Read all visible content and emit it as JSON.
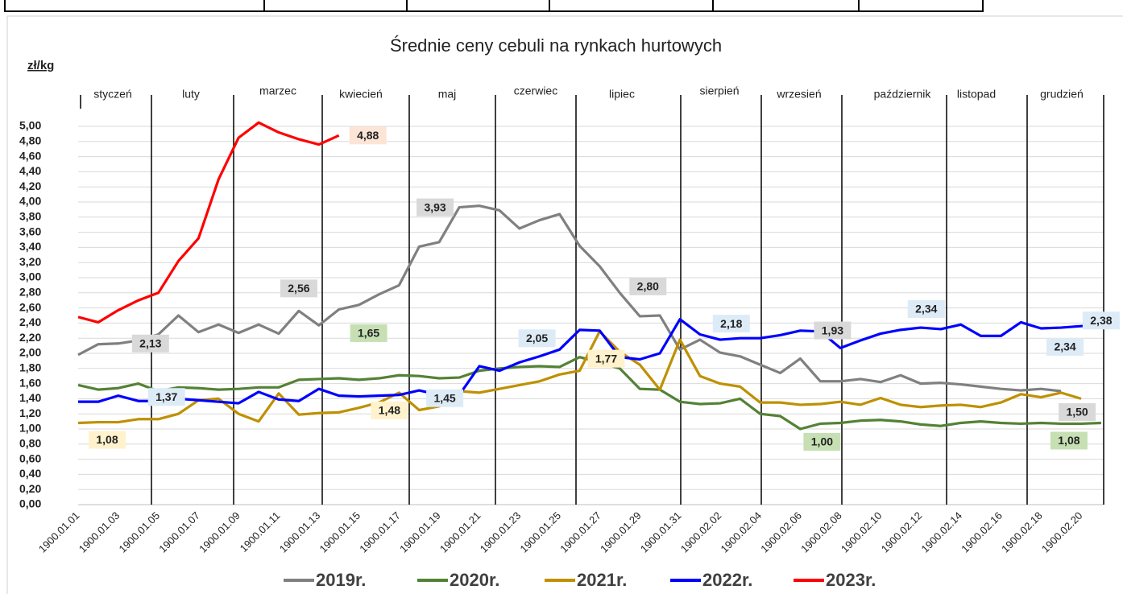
{
  "chart_data": {
    "type": "line",
    "title": "Średnie ceny cebuli na rynkach hurtowych",
    "y_label": "zł/kg",
    "annotations": [
      "styczeń",
      "luty",
      "marzec",
      "kwiecień",
      "maj",
      "czerwiec",
      "lipiec",
      "sierpień",
      "wrzesień",
      "październik",
      "listopad",
      "grudzień"
    ],
    "categories": [
      "1900.01.01",
      null,
      "1900.01.03",
      null,
      "1900.01.05",
      null,
      "1900.01.07",
      null,
      "1900.01.09",
      null,
      "1900.01.11",
      null,
      "1900.01.13",
      null,
      "1900.01.15",
      null,
      "1900.01.17",
      null,
      "1900.01.19",
      null,
      "1900.01.21",
      null,
      "1900.01.23",
      null,
      "1900.01.25",
      null,
      "1900.01.27",
      null,
      "1900.01.29",
      null,
      "1900.01.31",
      null,
      "1900.02.02",
      null,
      "1900.02.04",
      null,
      "1900.02.06",
      null,
      "1900.02.08",
      null,
      "1900.02.10",
      null,
      "1900.02.12",
      null,
      "1900.02.14",
      null,
      "1900.02.16",
      null,
      "1900.02.18",
      null,
      "1900.02.20",
      null
    ],
    "ylim": [
      0,
      5
    ],
    "yticks": [
      {
        "value": 0,
        "label": "0,00"
      },
      {
        "value": 0.2,
        "label": "0,20"
      },
      {
        "value": 0.4,
        "label": "0,40"
      },
      {
        "value": 0.6,
        "label": "0,60"
      },
      {
        "value": 0.8,
        "label": "0,80"
      },
      {
        "value": 1,
        "label": "1,00"
      },
      {
        "value": 1.2,
        "label": "1,20"
      },
      {
        "value": 1.4,
        "label": "1,40"
      },
      {
        "value": 1.6,
        "label": "1,60"
      },
      {
        "value": 1.8,
        "label": "1,80"
      },
      {
        "value": 2,
        "label": "2,00"
      },
      {
        "value": 2.2,
        "label": "2,20"
      },
      {
        "value": 2.4,
        "label": "2,40"
      },
      {
        "value": 2.6,
        "label": "2,60"
      },
      {
        "value": 2.8,
        "label": "2,80"
      },
      {
        "value": 3,
        "label": "3,00"
      },
      {
        "value": 3.2,
        "label": "3,20"
      },
      {
        "value": 3.4,
        "label": "3,40"
      },
      {
        "value": 3.6,
        "label": "3,60"
      },
      {
        "value": 3.8,
        "label": "3,80"
      },
      {
        "value": 4,
        "label": "4,00"
      },
      {
        "value": 4.2,
        "label": "4,20"
      },
      {
        "value": 4.4,
        "label": "4,40"
      },
      {
        "value": 4.6,
        "label": "4,60"
      },
      {
        "value": 4.8,
        "label": "4,80"
      },
      {
        "value": 5,
        "label": "5,00"
      }
    ],
    "grid": true,
    "legend": "bottom",
    "series": [
      {
        "name": "2019r.",
        "color": "#808080",
        "values": [
          1.98,
          2.12,
          2.13,
          2.17,
          2.25,
          2.5,
          2.28,
          2.38,
          2.27,
          2.38,
          2.26,
          2.56,
          2.37,
          2.58,
          2.64,
          2.78,
          2.9,
          3.41,
          3.47,
          3.93,
          3.95,
          3.89,
          3.65,
          3.76,
          3.84,
          3.42,
          3.15,
          2.8,
          2.49,
          2.5,
          2.05,
          2.18,
          2.01,
          1.96,
          1.85,
          1.74,
          1.93,
          1.63,
          1.63,
          1.66,
          1.62,
          1.71,
          1.6,
          1.61,
          1.59,
          1.56,
          1.53,
          1.51,
          1.53,
          1.5,
          null,
          null
        ],
        "value_labels": [
          null,
          null,
          "2,13",
          null,
          null,
          null,
          null,
          null,
          null,
          null,
          null,
          "2,56",
          null,
          null,
          null,
          null,
          null,
          null,
          null,
          "3,93",
          null,
          null,
          null,
          null,
          null,
          null,
          null,
          "2,80",
          null,
          null,
          null,
          null,
          null,
          null,
          null,
          null,
          "1,93",
          null,
          null,
          null,
          null,
          null,
          null,
          null,
          null,
          null,
          null,
          null,
          null,
          "1,50",
          null,
          null
        ]
      },
      {
        "name": "2020r.",
        "color": "#548235",
        "values": [
          1.58,
          1.52,
          1.54,
          1.6,
          1.5,
          1.55,
          1.54,
          1.52,
          1.53,
          1.55,
          1.55,
          1.65,
          1.66,
          1.67,
          1.65,
          1.67,
          1.71,
          1.7,
          1.67,
          1.68,
          1.77,
          1.8,
          1.82,
          1.83,
          1.82,
          1.95,
          1.88,
          1.8,
          1.53,
          1.52,
          1.36,
          1.33,
          1.34,
          1.4,
          1.2,
          1.17,
          1.0,
          1.07,
          1.08,
          1.11,
          1.12,
          1.1,
          1.06,
          1.04,
          1.08,
          1.1,
          1.08,
          1.07,
          1.08,
          1.07,
          1.07,
          1.08
        ],
        "value_labels": [
          null,
          null,
          null,
          null,
          null,
          null,
          null,
          null,
          null,
          null,
          null,
          null,
          null,
          null,
          "1,65",
          null,
          null,
          null,
          null,
          null,
          null,
          null,
          null,
          null,
          null,
          null,
          null,
          null,
          null,
          null,
          null,
          null,
          null,
          null,
          null,
          null,
          "1,00",
          null,
          null,
          null,
          null,
          null,
          null,
          null,
          null,
          null,
          null,
          null,
          null,
          null,
          null,
          "1,08"
        ]
      },
      {
        "name": "2021r.",
        "color": "#bf9000",
        "values": [
          1.08,
          1.09,
          1.09,
          1.13,
          1.13,
          1.2,
          1.38,
          1.4,
          1.2,
          1.1,
          1.47,
          1.19,
          1.21,
          1.22,
          1.28,
          1.35,
          1.48,
          1.25,
          1.3,
          1.5,
          1.48,
          1.53,
          1.58,
          1.63,
          1.72,
          1.77,
          2.29,
          2.02,
          1.85,
          1.52,
          2.18,
          1.7,
          1.6,
          1.56,
          1.35,
          1.35,
          1.32,
          1.33,
          1.36,
          1.32,
          1.41,
          1.32,
          1.29,
          1.31,
          1.32,
          1.29,
          1.35,
          1.46,
          1.42,
          1.48,
          1.4,
          null
        ],
        "value_labels": [
          "1,08",
          null,
          null,
          null,
          null,
          null,
          null,
          null,
          null,
          null,
          null,
          null,
          null,
          null,
          null,
          null,
          "1,48",
          null,
          null,
          null,
          null,
          null,
          null,
          null,
          null,
          "1,77",
          null,
          null,
          null,
          null,
          null,
          null,
          null,
          null,
          null,
          null,
          null,
          null,
          null,
          null,
          null,
          null,
          null,
          null,
          null,
          null,
          null,
          null,
          null,
          null,
          null,
          null
        ]
      },
      {
        "name": "2022r.",
        "color": "#0000ff",
        "values": [
          1.36,
          1.36,
          1.44,
          1.37,
          1.37,
          1.4,
          1.38,
          1.36,
          1.34,
          1.49,
          1.39,
          1.37,
          1.53,
          1.44,
          1.43,
          1.44,
          1.45,
          1.51,
          1.45,
          1.45,
          1.83,
          1.77,
          1.88,
          1.96,
          2.05,
          2.31,
          2.3,
          1.95,
          1.92,
          2.0,
          2.45,
          2.25,
          2.18,
          2.2,
          2.2,
          2.24,
          2.3,
          2.29,
          2.07,
          2.17,
          2.26,
          2.31,
          2.34,
          2.32,
          2.38,
          2.23,
          2.23,
          2.41,
          2.33,
          2.34,
          2.36,
          2.38
        ],
        "value_labels": [
          null,
          null,
          null,
          "1,37",
          null,
          null,
          null,
          null,
          null,
          null,
          null,
          null,
          null,
          null,
          null,
          null,
          null,
          null,
          null,
          "1,45",
          null,
          null,
          null,
          null,
          "2,05",
          null,
          null,
          null,
          null,
          null,
          null,
          null,
          "2,18",
          null,
          null,
          null,
          null,
          null,
          null,
          null,
          null,
          null,
          "2,34",
          null,
          null,
          null,
          null,
          null,
          null,
          "2,34",
          null,
          "2,38"
        ]
      },
      {
        "name": "2023r.",
        "color": "#ff0000",
        "values": [
          2.48,
          2.41,
          2.57,
          2.7,
          2.8,
          3.22,
          3.52,
          4.3,
          4.85,
          5.05,
          4.92,
          4.83,
          4.76,
          4.88,
          null,
          null,
          null,
          null,
          null,
          null,
          null,
          null,
          null,
          null,
          null,
          null,
          null,
          null,
          null,
          null,
          null,
          null,
          null,
          null,
          null,
          null,
          null,
          null,
          null,
          null,
          null,
          null,
          null,
          null,
          null,
          null,
          null,
          null,
          null,
          null,
          null,
          null
        ],
        "value_labels": [
          null,
          null,
          null,
          null,
          null,
          null,
          null,
          null,
          null,
          null,
          null,
          null,
          null,
          "4,88",
          null,
          null,
          null,
          null,
          null,
          null,
          null,
          null,
          null,
          null,
          null,
          null,
          null,
          null,
          null,
          null,
          null,
          null,
          null,
          null,
          null,
          null,
          null,
          null,
          null,
          null,
          null,
          null,
          null,
          null,
          null,
          null,
          null,
          null,
          null,
          null,
          null,
          null
        ]
      }
    ]
  }
}
